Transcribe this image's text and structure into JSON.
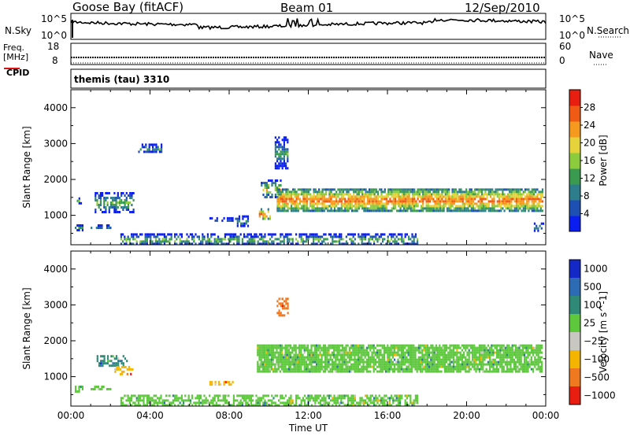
{
  "header": {
    "station": "Goose Bay (fitACF)",
    "beam": "Beam 01",
    "date": "12/Sep/2010"
  },
  "params": {
    "nsky_label": "N.Sky",
    "nsearch_label": "N.Search",
    "log_ticks": [
      "10^5",
      "10^0"
    ],
    "freq_label_1": "Freq.",
    "freq_label_2": "[MHz]",
    "freq_ticks": [
      "18",
      "8"
    ],
    "nave_label": "Nave",
    "nave_ticks": [
      "60",
      "0"
    ],
    "cpid_label": "CPID",
    "cpid_value": "themis (tau) 3310"
  },
  "chart_data": [
    {
      "type": "heatmap",
      "title": "",
      "xlabel": "Time UT",
      "ylabel": "Slant Range [km]",
      "x_ticks": [
        "00:00",
        "04:00",
        "08:00",
        "12:00",
        "16:00",
        "20:00",
        "00:00"
      ],
      "y_ticks": [
        1000,
        2000,
        3000,
        4000
      ],
      "xlim_hours": [
        0,
        24
      ],
      "ylim_km": [
        180,
        4500
      ],
      "colorbar": {
        "label": "Power [dB]",
        "ticks": [
          4,
          8,
          12,
          16,
          20,
          24,
          28
        ],
        "range": [
          0,
          32
        ],
        "colors": [
          "#0a1ef0",
          "#1e50b4",
          "#2e7d8c",
          "#3a9a50",
          "#8ccc3c",
          "#e6d23a",
          "#f59a1e",
          "#f05a14",
          "#e81e10"
        ]
      },
      "echo_regions": [
        {
          "t_start": 0.3,
          "t_end": 0.6,
          "r_start": 1350,
          "r_end": 1500,
          "value": 8
        },
        {
          "t_start": 1.2,
          "t_end": 3.2,
          "r_start": 1100,
          "r_end": 1650,
          "value": 10
        },
        {
          "t_start": 0.2,
          "t_end": 0.6,
          "r_start": 600,
          "r_end": 750,
          "value": 6
        },
        {
          "t_start": 1.0,
          "t_end": 2.0,
          "r_start": 650,
          "r_end": 750,
          "value": 6
        },
        {
          "t_start": 3.4,
          "t_end": 4.6,
          "r_start": 2750,
          "r_end": 3000,
          "value": 6
        },
        {
          "t_start": 7.0,
          "t_end": 8.2,
          "r_start": 850,
          "r_end": 950,
          "value": 6
        },
        {
          "t_start": 8.3,
          "t_end": 9.0,
          "r_start": 700,
          "r_end": 1000,
          "value": 6
        },
        {
          "t_start": 9.5,
          "t_end": 10.1,
          "r_start": 900,
          "r_end": 1200,
          "value": 18
        },
        {
          "t_start": 9.6,
          "t_end": 10.6,
          "r_start": 1500,
          "r_end": 2000,
          "value": 14
        },
        {
          "t_start": 10.4,
          "t_end": 23.8,
          "r_start": 1150,
          "r_end": 1750,
          "value": 20
        },
        {
          "t_start": 10.3,
          "t_end": 11.0,
          "r_start": 2300,
          "r_end": 3200,
          "value": 6
        },
        {
          "t_start": 23.4,
          "t_end": 23.9,
          "r_start": 600,
          "r_end": 800,
          "value": 6
        },
        {
          "t_start": 2.5,
          "t_end": 17.5,
          "r_start": 180,
          "r_end": 500,
          "value": 8
        }
      ]
    },
    {
      "type": "heatmap",
      "title": "",
      "xlabel": "Time UT",
      "ylabel": "Slant Range [km]",
      "x_ticks": [
        "00:00",
        "04:00",
        "08:00",
        "12:00",
        "16:00",
        "20:00",
        "00:00"
      ],
      "y_ticks": [
        1000,
        2000,
        3000,
        4000
      ],
      "xlim_hours": [
        0,
        24
      ],
      "ylim_km": [
        180,
        4500
      ],
      "colorbar": {
        "label": "Velocity [m s^-1]",
        "ticks": [
          "1000",
          "500",
          "100",
          "25",
          "−25",
          "−100",
          "−500",
          "−1000"
        ],
        "colors": [
          "#1428c8",
          "#2d6cb4",
          "#2e8a76",
          "#5ec83c",
          "#c8c8c0",
          "#f5b400",
          "#f0781e",
          "#e81e10"
        ]
      },
      "echo_regions": [
        {
          "t_start": 1.3,
          "t_end": 2.8,
          "r_start": 1300,
          "r_end": 1600,
          "value": "100"
        },
        {
          "t_start": 2.2,
          "t_end": 3.1,
          "r_start": 1100,
          "r_end": 1300,
          "value": "−100"
        },
        {
          "t_start": 0.2,
          "t_end": 0.6,
          "r_start": 600,
          "r_end": 750,
          "value": "25"
        },
        {
          "t_start": 1.0,
          "t_end": 2.0,
          "r_start": 650,
          "r_end": 750,
          "value": "25"
        },
        {
          "t_start": 7.0,
          "t_end": 8.2,
          "r_start": 780,
          "r_end": 880,
          "value": "−100"
        },
        {
          "t_start": 9.4,
          "t_end": 23.8,
          "r_start": 1150,
          "r_end": 1900,
          "value": "25"
        },
        {
          "t_start": 10.4,
          "t_end": 11.0,
          "r_start": 2700,
          "r_end": 3200,
          "value": "−500"
        },
        {
          "t_start": 2.5,
          "t_end": 17.5,
          "r_start": 180,
          "r_end": 500,
          "value": "25"
        }
      ]
    }
  ]
}
